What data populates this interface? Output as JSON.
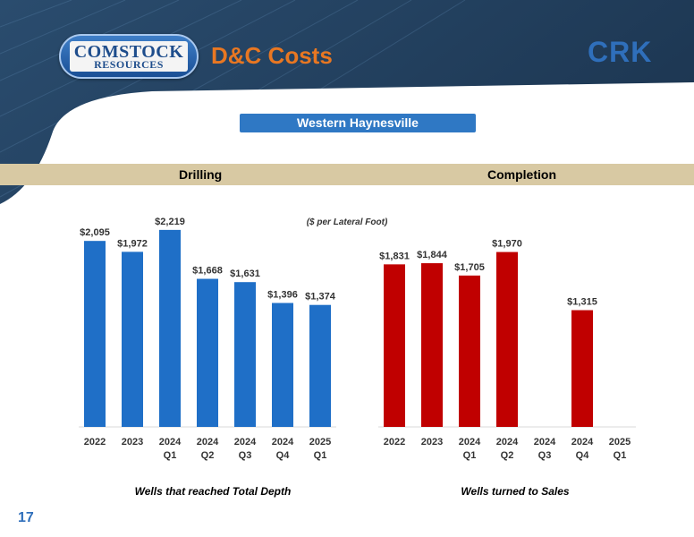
{
  "header": {
    "logo_top": "COMSTOCK",
    "logo_bottom": "RESOURCES",
    "title": "D&C Costs",
    "ticker": "CRK"
  },
  "region_banner": "Western Haynesville",
  "sections": {
    "drilling_label": "Drilling",
    "completion_label": "Completion"
  },
  "page_number": "17",
  "colors": {
    "drilling_bar": "#1f6fc7",
    "completion_bar": "#c00000",
    "header_bg": "#1b3553",
    "section_bar": "#d8c9a3",
    "title": "#e87722"
  },
  "chart_data": [
    {
      "type": "bar",
      "title": "Drilling",
      "annotation": "($ per Lateral Foot)",
      "xlabel": "Wells that reached Total Depth",
      "categories": [
        [
          "2022"
        ],
        [
          "2023"
        ],
        [
          "2024",
          "Q1"
        ],
        [
          "2024",
          "Q2"
        ],
        [
          "2024",
          "Q3"
        ],
        [
          "2024",
          "Q4"
        ],
        [
          "2025",
          "Q1"
        ]
      ],
      "values": [
        2095,
        1972,
        2219,
        1668,
        1631,
        1396,
        1374
      ],
      "data_labels": [
        "$2,095",
        "$1,972",
        "$2,219",
        "$1,668",
        "$1,631",
        "$1,396",
        "$1,374"
      ],
      "ylim": [
        0,
        2400
      ]
    },
    {
      "type": "bar",
      "title": "Completion",
      "xlabel": "Wells turned to Sales",
      "categories": [
        [
          "2022"
        ],
        [
          "2023"
        ],
        [
          "2024",
          "Q1"
        ],
        [
          "2024",
          "Q2"
        ],
        [
          "2024",
          "Q3"
        ],
        [
          "2024",
          "Q4"
        ],
        [
          "2025",
          "Q1"
        ]
      ],
      "values": [
        1831,
        1844,
        1705,
        1970,
        null,
        1315,
        null
      ],
      "data_labels": [
        "$1,831",
        "$1,844",
        "$1,705",
        "$1,970",
        "",
        "$1,315",
        ""
      ],
      "ylim": [
        0,
        2400
      ]
    }
  ]
}
